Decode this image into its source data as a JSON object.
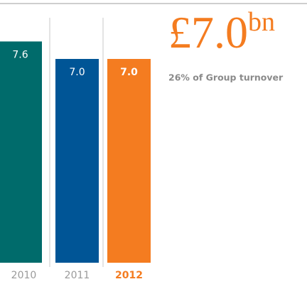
{
  "chart_data": {
    "type": "bar",
    "headline": {
      "main": "£7.0",
      "sup": "bn"
    },
    "subtitle": "26% of Group turnover",
    "categories": [
      "2010",
      "2011",
      "2012"
    ],
    "values": [
      7.6,
      7.0,
      7.0
    ],
    "value_labels": [
      "7.6",
      "7.0",
      "7.0"
    ],
    "colors": [
      "#006b6b",
      "#005596",
      "#f47c20"
    ],
    "highlight": 2
  }
}
